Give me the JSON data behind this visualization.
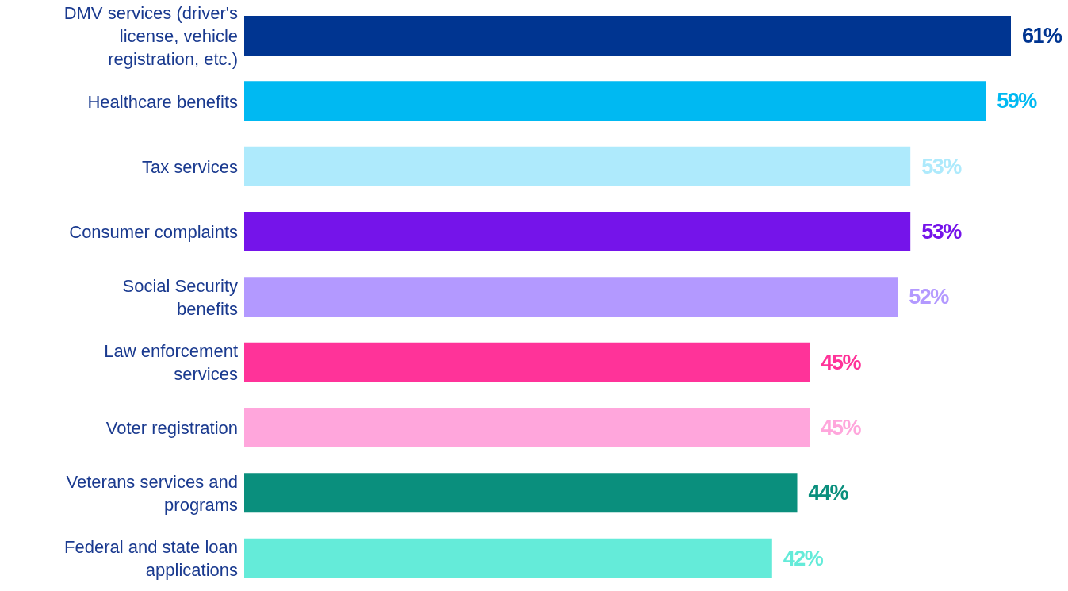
{
  "chart_data": {
    "type": "bar",
    "orientation": "horizontal",
    "categories": [
      "DMV services (driver's license, vehicle registration, etc.)",
      "Healthcare benefits",
      "Tax services",
      "Consumer complaints",
      "Social Security benefits",
      "Law enforcement services",
      "Voter registration",
      "Veterans services and programs",
      "Federal and state loan applications"
    ],
    "values": [
      61,
      59,
      53,
      53,
      52,
      45,
      45,
      44,
      42
    ],
    "value_labels": [
      "61%",
      "59%",
      "53%",
      "53%",
      "52%",
      "45%",
      "45%",
      "44%",
      "42%"
    ],
    "colors": [
      "#003591",
      "#00b9f2",
      "#aeeafc",
      "#7514ea",
      "#b399ff",
      "#ff3399",
      "#ffa6dc",
      "#0a8f7d",
      "#64ebd9"
    ],
    "legend": false,
    "grid": false
  }
}
